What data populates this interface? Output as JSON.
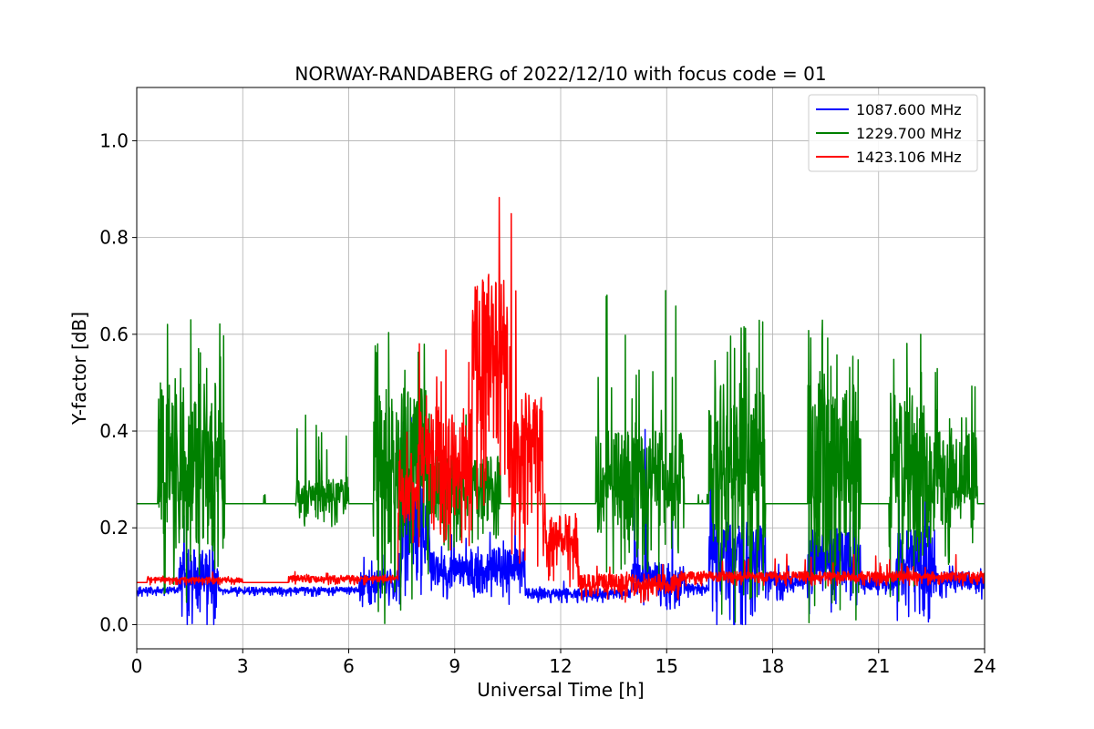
{
  "chart_data": {
    "type": "line",
    "title": "NORWAY-RANDABERG of 2022/12/10 with focus code = 01",
    "xlabel": "Universal Time [h]",
    "ylabel": "Y-factor [dB]",
    "xlim": [
      0,
      24
    ],
    "ylim": [
      -0.05,
      1.11
    ],
    "xticks": [
      0,
      3,
      6,
      9,
      12,
      15,
      18,
      21,
      24
    ],
    "xtick_labels": [
      "0",
      "3",
      "6",
      "9",
      "12",
      "15",
      "18",
      "21",
      "24"
    ],
    "yticks": [
      0.0,
      0.2,
      0.4,
      0.6,
      0.8,
      1.0
    ],
    "ytick_labels": [
      "0.0",
      "0.2",
      "0.4",
      "0.6",
      "0.8",
      "1.0"
    ],
    "grid": true,
    "legend_position": "top-right",
    "series": [
      {
        "name": "1087.600 MHz",
        "color": "#0000ff",
        "baseline": 0.068,
        "segments": [
          {
            "t0": 0.0,
            "t1": 7.3,
            "base": 0.068,
            "amp": 0.01,
            "spike_p": 0.0,
            "spike_amp": 0.0
          },
          {
            "t0": 1.2,
            "t1": 2.3,
            "base": 0.075,
            "amp": 0.08,
            "spike_p": 0.05,
            "spike_amp": 0.18
          },
          {
            "t0": 6.3,
            "t1": 7.5,
            "base": 0.075,
            "amp": 0.04,
            "spike_p": 0.05,
            "spike_amp": 0.08
          },
          {
            "t0": 7.5,
            "t1": 8.3,
            "base": 0.15,
            "amp": 0.15,
            "spike_p": 0.08,
            "spike_amp": 0.3
          },
          {
            "t0": 8.3,
            "t1": 10.0,
            "base": 0.1,
            "amp": 0.05,
            "spike_p": 0.05,
            "spike_amp": 0.1
          },
          {
            "t0": 10.0,
            "t1": 11.0,
            "base": 0.1,
            "amp": 0.06,
            "spike_p": 0.05,
            "spike_amp": 0.12
          },
          {
            "t0": 11.0,
            "t1": 14.0,
            "base": 0.06,
            "amp": 0.015,
            "spike_p": 0.02,
            "spike_amp": 0.03
          },
          {
            "t0": 14.0,
            "t1": 15.5,
            "base": 0.08,
            "amp": 0.05,
            "spike_p": 0.06,
            "spike_amp": 0.35
          },
          {
            "t0": 15.5,
            "t1": 16.2,
            "base": 0.07,
            "amp": 0.015,
            "spike_p": 0.02,
            "spike_amp": 0.03
          },
          {
            "t0": 16.2,
            "t1": 17.8,
            "base": 0.1,
            "amp": 0.12,
            "spike_p": 0.08,
            "spike_amp": 0.25
          },
          {
            "t0": 17.8,
            "t1": 19.0,
            "base": 0.08,
            "amp": 0.03,
            "spike_p": 0.03,
            "spike_amp": 0.05
          },
          {
            "t0": 19.0,
            "t1": 20.5,
            "base": 0.1,
            "amp": 0.1,
            "spike_p": 0.06,
            "spike_amp": 0.18
          },
          {
            "t0": 20.5,
            "t1": 21.5,
            "base": 0.08,
            "amp": 0.02,
            "spike_p": 0.03,
            "spike_amp": 0.04
          },
          {
            "t0": 21.5,
            "t1": 22.6,
            "base": 0.1,
            "amp": 0.1,
            "spike_p": 0.06,
            "spike_amp": 0.22
          },
          {
            "t0": 22.6,
            "t1": 24.0,
            "base": 0.08,
            "amp": 0.03,
            "spike_p": 0.03,
            "spike_amp": 0.06
          }
        ]
      },
      {
        "name": "1229.700 MHz",
        "color": "#008000",
        "baseline": 0.25,
        "segments": [
          {
            "t0": 0.0,
            "t1": 0.6,
            "base": 0.25,
            "amp": 0.0,
            "spike_p": 0.0,
            "spike_amp": 0.0
          },
          {
            "t0": 0.6,
            "t1": 2.5,
            "base": 0.25,
            "amp": 0.25,
            "spike_p": 0.2,
            "spike_amp": 0.38
          },
          {
            "t0": 2.5,
            "t1": 4.5,
            "base": 0.25,
            "amp": 0.0,
            "spike_p": 0.01,
            "spike_amp": 0.03
          },
          {
            "t0": 4.5,
            "t1": 6.0,
            "base": 0.25,
            "amp": 0.05,
            "spike_p": 0.05,
            "spike_amp": 0.2
          },
          {
            "t0": 6.0,
            "t1": 6.7,
            "base": 0.25,
            "amp": 0.0,
            "spike_p": 0.01,
            "spike_amp": 0.02
          },
          {
            "t0": 6.7,
            "t1": 8.3,
            "base": 0.25,
            "amp": 0.25,
            "spike_p": 0.15,
            "spike_amp": 0.38
          },
          {
            "t0": 8.3,
            "t1": 10.3,
            "base": 0.25,
            "amp": 0.1,
            "spike_p": 0.05,
            "spike_amp": 0.2
          },
          {
            "t0": 10.3,
            "t1": 13.0,
            "base": 0.25,
            "amp": 0.0,
            "spike_p": 0.01,
            "spike_amp": 0.02
          },
          {
            "t0": 13.0,
            "t1": 15.5,
            "base": 0.25,
            "amp": 0.15,
            "spike_p": 0.1,
            "spike_amp": 0.5
          },
          {
            "t0": 15.5,
            "t1": 16.2,
            "base": 0.25,
            "amp": 0.0,
            "spike_p": 0.01,
            "spike_amp": 0.02
          },
          {
            "t0": 16.2,
            "t1": 17.8,
            "base": 0.25,
            "amp": 0.25,
            "spike_p": 0.2,
            "spike_amp": 0.38
          },
          {
            "t0": 17.8,
            "t1": 19.0,
            "base": 0.25,
            "amp": 0.0,
            "spike_p": 0.01,
            "spike_amp": 0.02
          },
          {
            "t0": 19.0,
            "t1": 20.5,
            "base": 0.25,
            "amp": 0.25,
            "spike_p": 0.2,
            "spike_amp": 0.38
          },
          {
            "t0": 20.5,
            "t1": 21.3,
            "base": 0.25,
            "amp": 0.0,
            "spike_p": 0.01,
            "spike_amp": 0.02
          },
          {
            "t0": 21.3,
            "t1": 22.4,
            "base": 0.25,
            "amp": 0.25,
            "spike_p": 0.2,
            "spike_amp": 0.38
          },
          {
            "t0": 22.4,
            "t1": 23.8,
            "base": 0.25,
            "amp": 0.15,
            "spike_p": 0.1,
            "spike_amp": 0.28
          },
          {
            "t0": 23.8,
            "t1": 24.0,
            "base": 0.25,
            "amp": 0.0,
            "spike_p": 0.0,
            "spike_amp": 0.0
          }
        ]
      },
      {
        "name": "1423.106 MHz",
        "color": "#ff0000",
        "baseline": 0.087,
        "segments": [
          {
            "t0": 0.0,
            "t1": 0.3,
            "base": 0.087,
            "amp": 0.0,
            "spike_p": 0.0,
            "spike_amp": 0.0
          },
          {
            "t0": 0.3,
            "t1": 3.0,
            "base": 0.09,
            "amp": 0.008,
            "spike_p": 0.02,
            "spike_amp": 0.02
          },
          {
            "t0": 3.0,
            "t1": 4.3,
            "base": 0.087,
            "amp": 0.0,
            "spike_p": 0.0,
            "spike_amp": 0.0
          },
          {
            "t0": 4.3,
            "t1": 7.4,
            "base": 0.092,
            "amp": 0.01,
            "spike_p": 0.02,
            "spike_amp": 0.02
          },
          {
            "t0": 7.4,
            "t1": 8.0,
            "base": 0.25,
            "amp": 0.12,
            "spike_p": 0.06,
            "spike_amp": 0.2
          },
          {
            "t0": 8.0,
            "t1": 9.5,
            "base": 0.3,
            "amp": 0.15,
            "spike_p": 0.08,
            "spike_amp": 0.3
          },
          {
            "t0": 9.5,
            "t1": 10.5,
            "base": 0.48,
            "amp": 0.25,
            "spike_p": 0.08,
            "spike_amp": 0.45
          },
          {
            "t0": 10.5,
            "t1": 11.5,
            "base": 0.3,
            "amp": 0.18,
            "spike_p": 0.06,
            "spike_amp": 0.55
          },
          {
            "t0": 11.5,
            "t1": 12.5,
            "base": 0.15,
            "amp": 0.08,
            "spike_p": 0.05,
            "spike_amp": 0.12
          },
          {
            "t0": 12.5,
            "t1": 15.4,
            "base": 0.075,
            "amp": 0.03,
            "spike_p": 0.03,
            "spike_amp": 0.05
          },
          {
            "t0": 15.4,
            "t1": 24.0,
            "base": 0.095,
            "amp": 0.015,
            "spike_p": 0.03,
            "spike_amp": 0.06
          }
        ]
      }
    ]
  }
}
